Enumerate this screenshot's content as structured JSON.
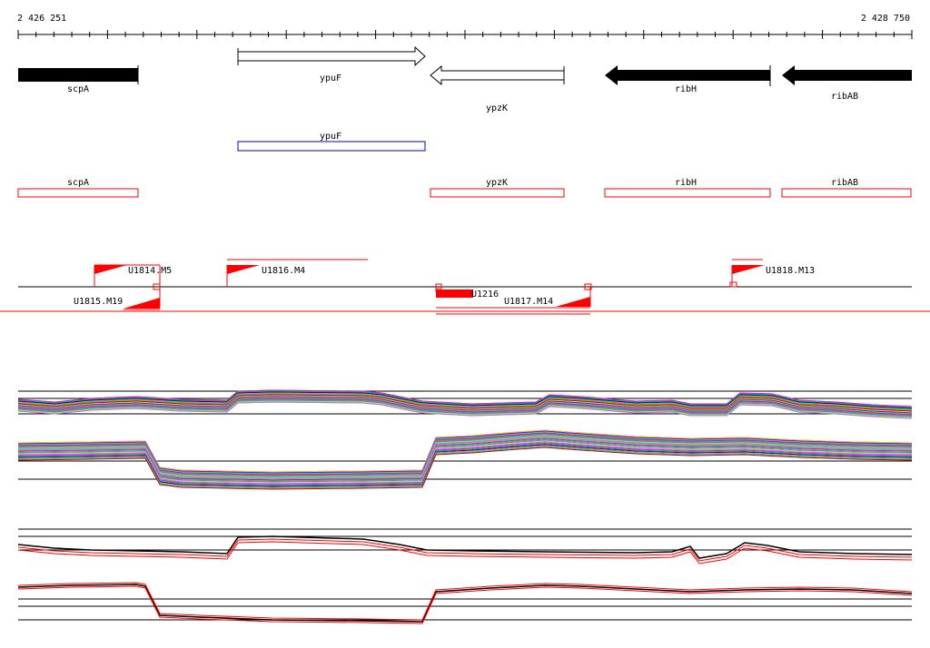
{
  "ruler": {
    "start_label": "2 426 251",
    "end_label": "2 428 750"
  },
  "genes": {
    "scpA": "scpA",
    "ypuF": "ypuF",
    "ypzK": "ypzK",
    "ribH": "ribH",
    "ribAB": "ribAB"
  },
  "features": {
    "u1814": "U1814.M5",
    "u1816": "U1816.M4",
    "u1818": "U1818.M13",
    "u1815": "U1815.M19",
    "u1216": "U1216",
    "u1817": "U1817.M14"
  },
  "colors": {
    "black": "#000000",
    "red": "#ff0000",
    "blue": "#0000cc",
    "palette": [
      "#ff00ff",
      "#00cc00",
      "#0000ff",
      "#ff8800",
      "#00cccc",
      "#cc0000",
      "#ffcc00",
      "#8800ff",
      "#00ff88",
      "#ff0088",
      "#888888",
      "#4488ff",
      "#88ff00",
      "#cc66ff"
    ]
  }
}
